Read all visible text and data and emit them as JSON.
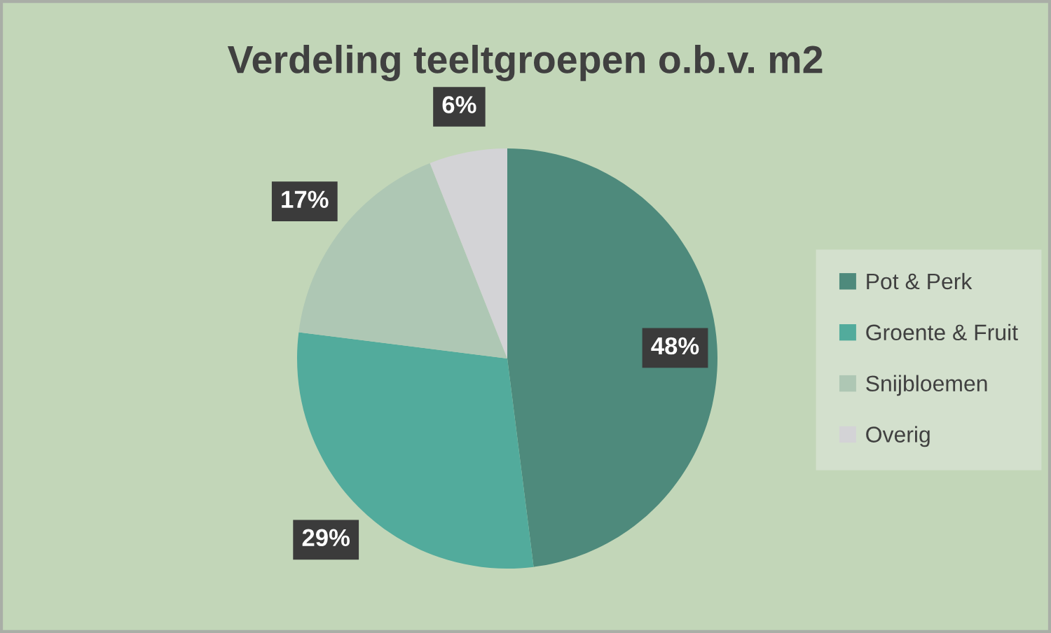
{
  "chart_data": {
    "type": "pie",
    "title": "Verdeling teeltgroepen o.b.v. m2",
    "categories": [
      "Pot & Perk",
      "Groente & Fruit",
      "Snijbloemen",
      "Overig"
    ],
    "values": [
      48,
      29,
      17,
      6
    ],
    "colors": [
      "#4e8a7c",
      "#52ab9c",
      "#aec7b4",
      "#d3d3d6"
    ],
    "value_labels": [
      "48%",
      "29%",
      "17%",
      "6%"
    ],
    "legend": "right"
  }
}
